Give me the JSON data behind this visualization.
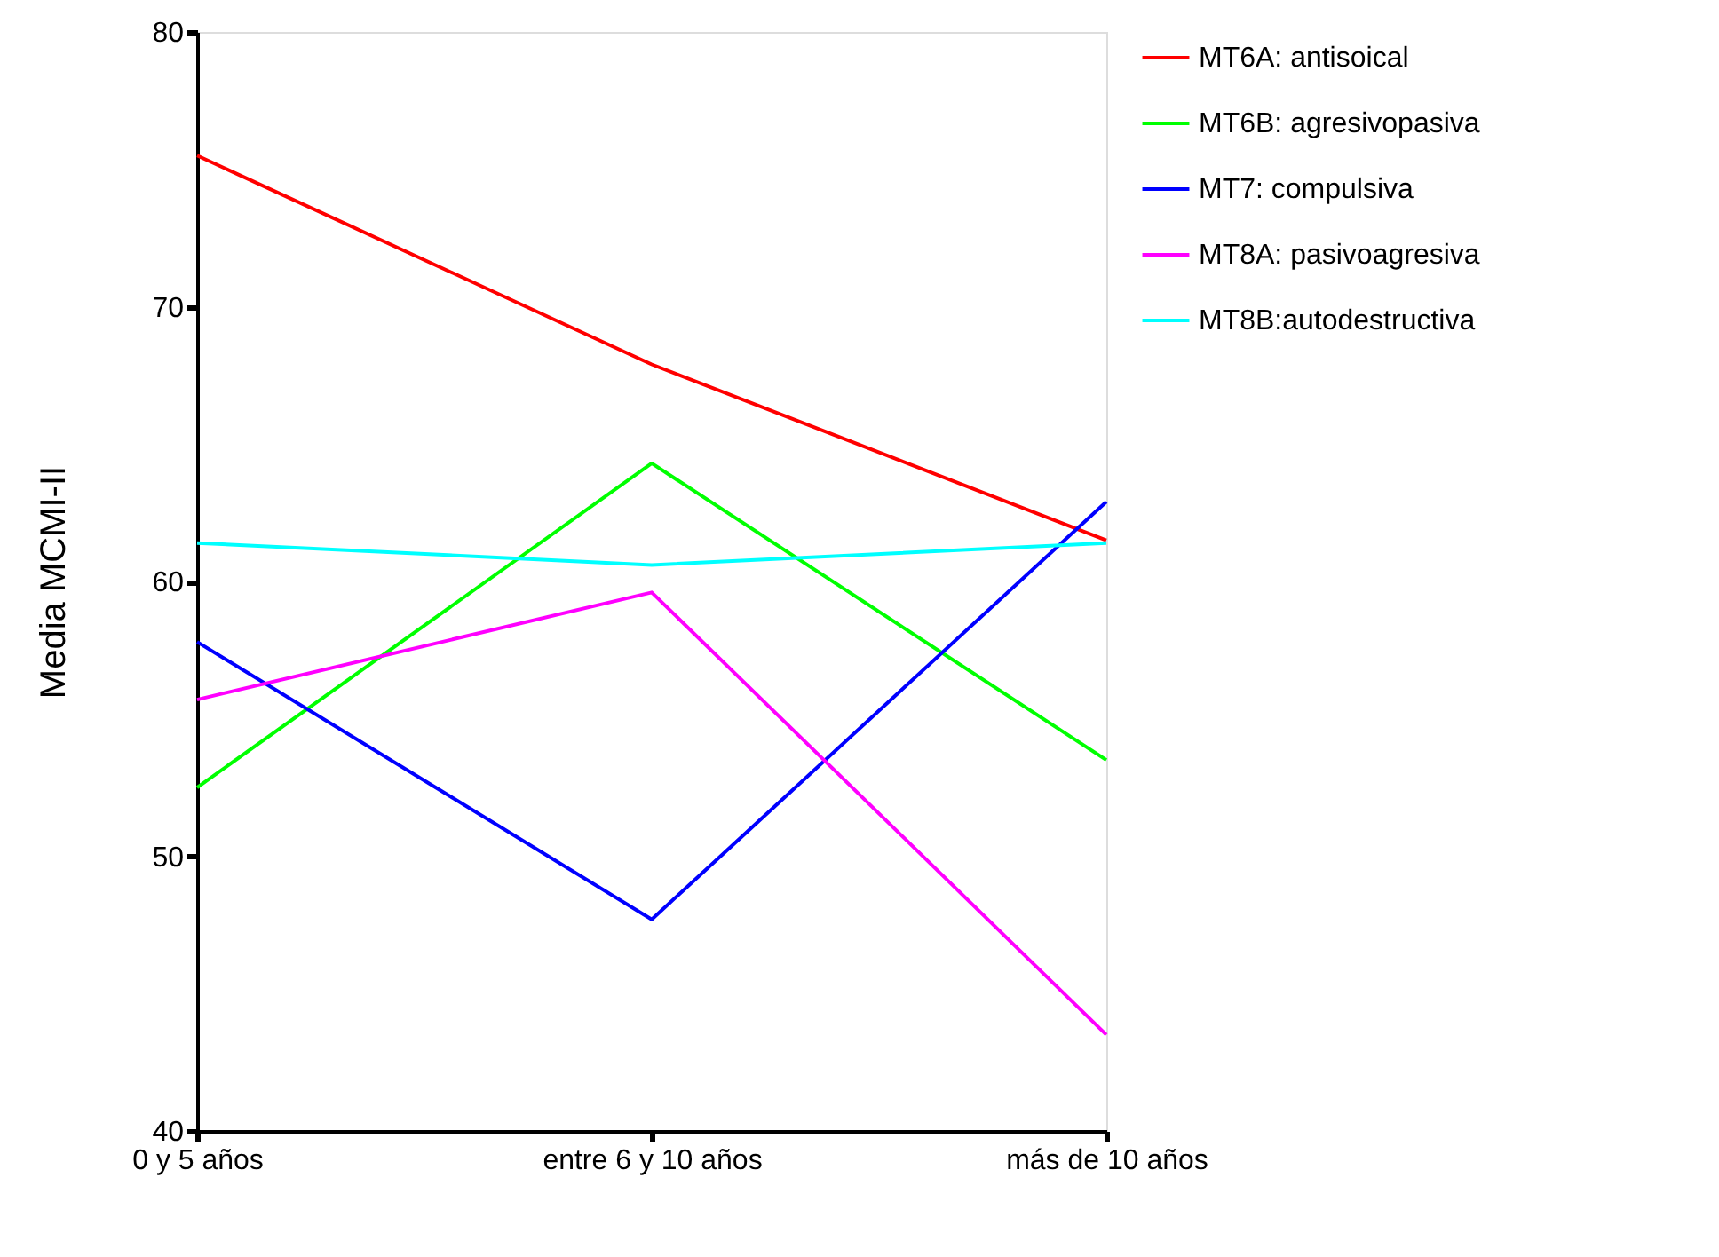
{
  "chart_data": {
    "type": "line",
    "ylabel": "Media MCMI-II",
    "categories": [
      "0 y 5 años",
      "entre 6 y 10 años",
      "más de 10 años"
    ],
    "ylim": [
      40,
      80
    ],
    "yticks": [
      40,
      50,
      60,
      70,
      80
    ],
    "grid": false,
    "legend": "right",
    "marker": "none",
    "line_style": "solid",
    "series": [
      {
        "name": "MT6A: antisoical",
        "color": "#ff0000",
        "values": [
          75.5,
          67.9,
          61.5
        ]
      },
      {
        "name": "MT6B: agresivopasiva",
        "color": "#00ff00",
        "values": [
          52.5,
          64.3,
          53.5
        ]
      },
      {
        "name": "MT7: compulsiva",
        "color": "#0000ff",
        "values": [
          57.8,
          47.7,
          62.9
        ]
      },
      {
        "name": "MT8A: pasivoagresiva",
        "color": "#ff00ff",
        "values": [
          55.7,
          59.6,
          43.5
        ]
      },
      {
        "name": "MT8B:autodestructiva",
        "color": "#00ffff",
        "values": [
          61.4,
          60.6,
          61.4
        ]
      }
    ]
  }
}
